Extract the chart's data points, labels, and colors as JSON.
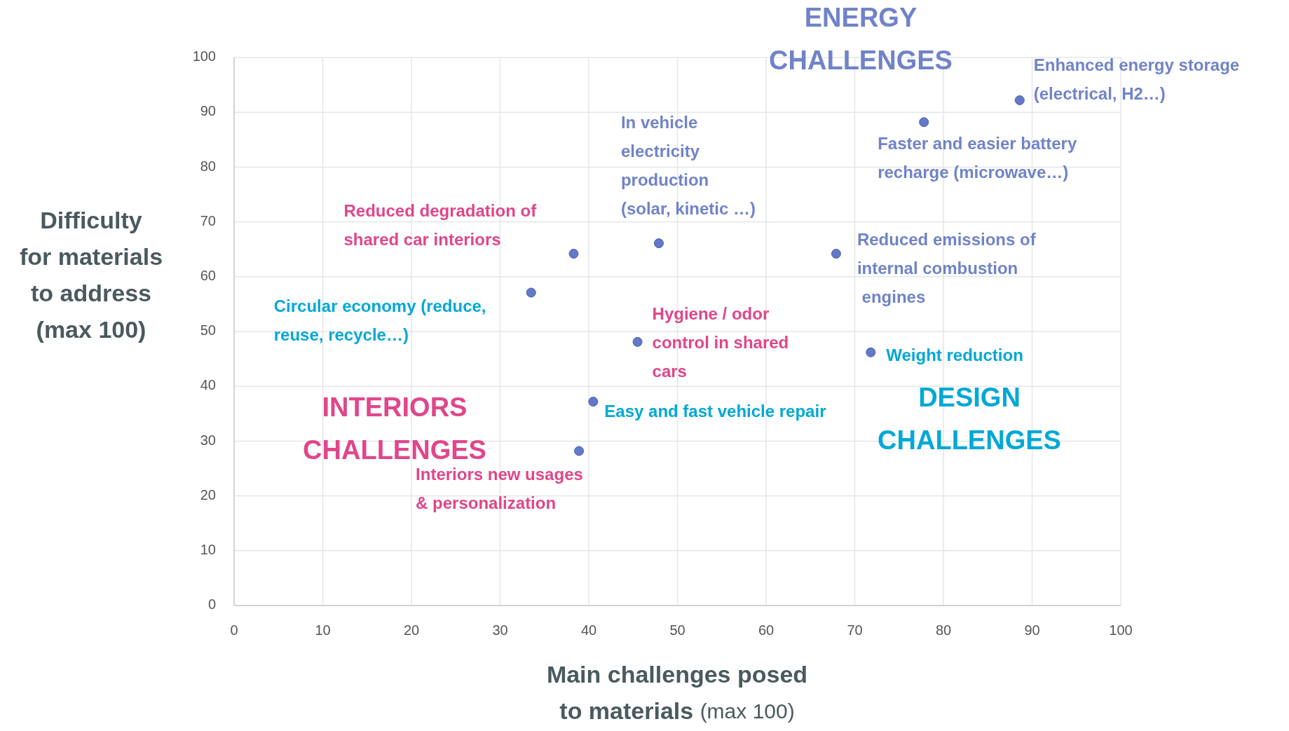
{
  "chart_data": {
    "type": "scatter",
    "xlabel": "Main challenges posed\nto materials (max 100)",
    "ylabel": "Difficulty\nfor materials\nto address\n(max 100)",
    "xlim": [
      0,
      100
    ],
    "ylim": [
      0,
      100
    ],
    "xticks": [
      0,
      10,
      20,
      30,
      40,
      50,
      60,
      70,
      80,
      90,
      100
    ],
    "yticks": [
      0,
      10,
      20,
      30,
      40,
      50,
      60,
      70,
      80,
      90,
      100
    ],
    "grid": true,
    "marker": "circle",
    "series": [
      {
        "color": "#6478c8",
        "x": [
          88.6,
          77.8,
          47.9,
          38.3,
          67.9,
          33.5,
          45.5,
          71.8,
          40.5,
          38.9
        ],
        "values": [
          92.2,
          88.2,
          66.1,
          64.2,
          64.2,
          57.1,
          48.1,
          46.2,
          37.2,
          28.2
        ]
      }
    ],
    "annotations": [
      {
        "text": "Enhanced energy storage\n(electrical, H2…)",
        "x": 88.6,
        "y": 92.2
      },
      {
        "text": "Faster and easier battery\nrecharge (microwave…)",
        "x": 77.8,
        "y": 88.2
      },
      {
        "text": "In vehicle\nelectricity\nproduction\n(solar, kinetic …)",
        "x": 47.9,
        "y": 66.1
      },
      {
        "text": "Reduced degradation of\nshared car interiors",
        "x": 38.3,
        "y": 64.2
      },
      {
        "text": "Reduced emissions of\ninternal combustion\n engines",
        "x": 67.9,
        "y": 64.2
      },
      {
        "text": "Circular economy (reduce,\nreuse, recycle…)",
        "x": 33.5,
        "y": 57.1
      },
      {
        "text": "Hygiene / odor\ncontrol in shared\ncars",
        "x": 45.5,
        "y": 48.1
      },
      {
        "text": "Weight reduction",
        "x": 71.8,
        "y": 46.2
      },
      {
        "text": "Easy and fast vehicle repair",
        "x": 40.5,
        "y": 37.2
      },
      {
        "text": "Interiors new usages\n& personalization",
        "x": 38.9,
        "y": 28.2
      },
      "ENERGY\nCHALLENGES",
      "INTERIORS\nCHALLENGES",
      "DESIGN\nCHALLENGES"
    ]
  }
}
